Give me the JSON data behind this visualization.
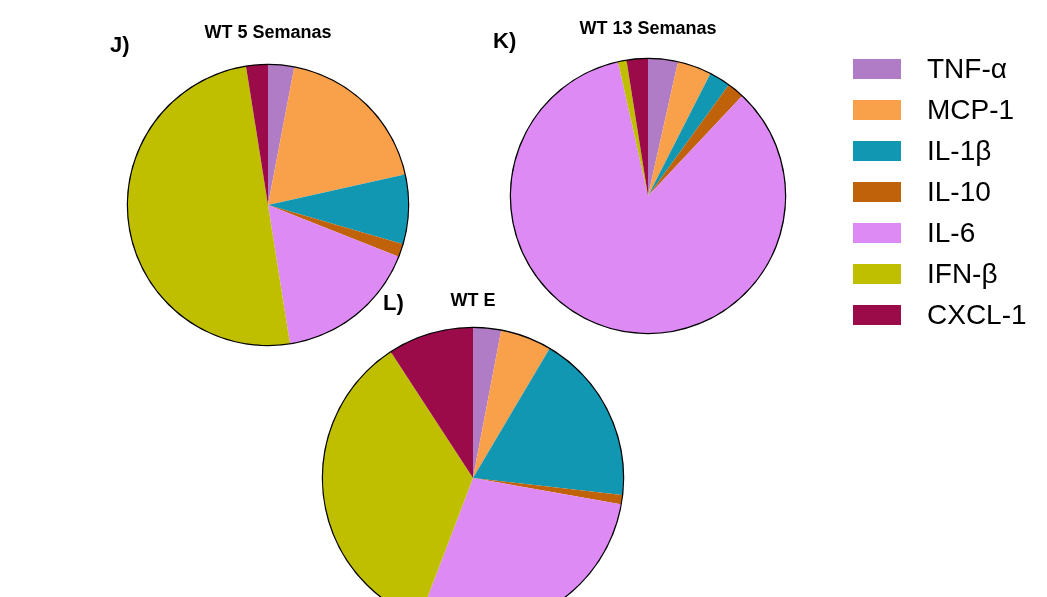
{
  "chart_data": [
    {
      "type": "pie",
      "title": "WT 5 Semanas",
      "annotations": [
        "J)"
      ],
      "legend": "right",
      "categories": [
        "TNF-α",
        "MCP-1",
        "IL-1β",
        "IL-10",
        "IL-6",
        "IFN-β",
        "CXCL-1"
      ],
      "values": [
        3,
        18.5,
        8,
        1.5,
        16.5,
        50,
        2.5
      ],
      "colors": [
        "#b07cc6",
        "#f9a04a",
        "#1297b3",
        "#c0620a",
        "#dd8af5",
        "#bfbf00",
        "#9b0b4a"
      ]
    },
    {
      "type": "pie",
      "title": "WT 13 Semanas",
      "annotations": [
        "K)"
      ],
      "categories": [
        null,
        null,
        null,
        null,
        null,
        null,
        null
      ],
      "values": [
        3.5,
        4,
        2.5,
        2,
        84.5,
        1,
        2.5
      ],
      "colors": [
        "#b07cc6",
        "#f9a04a",
        "#1297b3",
        "#c0620a",
        "#dd8af5",
        "#bfbf00",
        "#9b0b4a"
      ]
    },
    {
      "type": "pie",
      "title": "WT E",
      "annotations": [
        "L)"
      ],
      "categories": [
        null,
        null,
        null,
        null,
        null,
        null,
        null
      ],
      "values": [
        3,
        5.5,
        18.3,
        1,
        28,
        35,
        9.2
      ],
      "colors": [
        "#b07cc6",
        "#f9a04a",
        "#1297b3",
        "#c0620a",
        "#dd8af5",
        "#bfbf00",
        "#9b0b4a"
      ]
    }
  ]
}
